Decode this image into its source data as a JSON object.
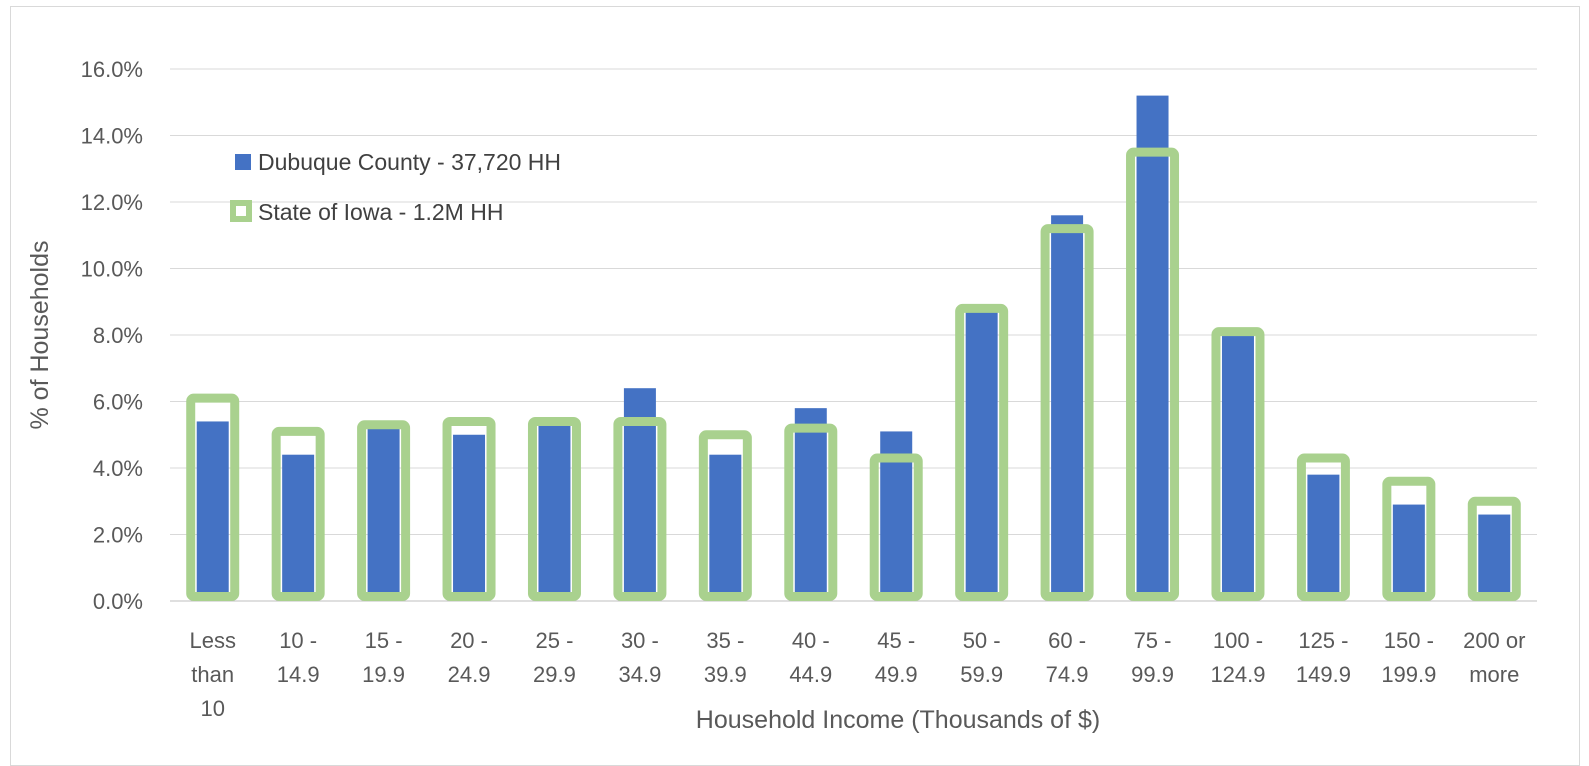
{
  "chart_data": {
    "type": "bar",
    "title": "",
    "xlabel": "Household Income (Thousands of $)",
    "ylabel": "% of Households",
    "ylim": [
      0,
      16
    ],
    "yticks": [
      "0.0%",
      "2.0%",
      "4.0%",
      "6.0%",
      "8.0%",
      "10.0%",
      "12.0%",
      "14.0%",
      "16.0%"
    ],
    "grid": true,
    "legend_position": "top-left",
    "categories": [
      [
        "Less",
        "than",
        "10"
      ],
      [
        "10 -",
        "14.9"
      ],
      [
        "15 -",
        "19.9"
      ],
      [
        "20 -",
        "24.9"
      ],
      [
        "25 -",
        "29.9"
      ],
      [
        "30 -",
        "34.9"
      ],
      [
        "35 -",
        "39.9"
      ],
      [
        "40 -",
        "44.9"
      ],
      [
        "45 -",
        "49.9"
      ],
      [
        "50 -",
        "59.9"
      ],
      [
        "60 -",
        "74.9"
      ],
      [
        "75 -",
        "99.9"
      ],
      [
        "100 -",
        "124.9"
      ],
      [
        "125 -",
        "149.9"
      ],
      [
        "150 -",
        "199.9"
      ],
      [
        "200 or",
        "more"
      ]
    ],
    "series": [
      {
        "name": "Dubuque County - 37,720 HH",
        "color": "#4472C4",
        "style": "filled",
        "values": [
          5.4,
          4.4,
          5.2,
          5.0,
          5.3,
          6.4,
          4.4,
          5.8,
          5.1,
          8.7,
          11.6,
          15.2,
          8.0,
          3.8,
          2.9,
          2.6
        ]
      },
      {
        "name": "State of Iowa - 1.2M HH",
        "color": "#A9D18E",
        "style": "outline",
        "values": [
          6.1,
          5.1,
          5.3,
          5.4,
          5.4,
          5.4,
          5.0,
          5.2,
          4.3,
          8.8,
          11.2,
          13.5,
          8.1,
          4.3,
          3.6,
          3.0
        ]
      }
    ]
  }
}
